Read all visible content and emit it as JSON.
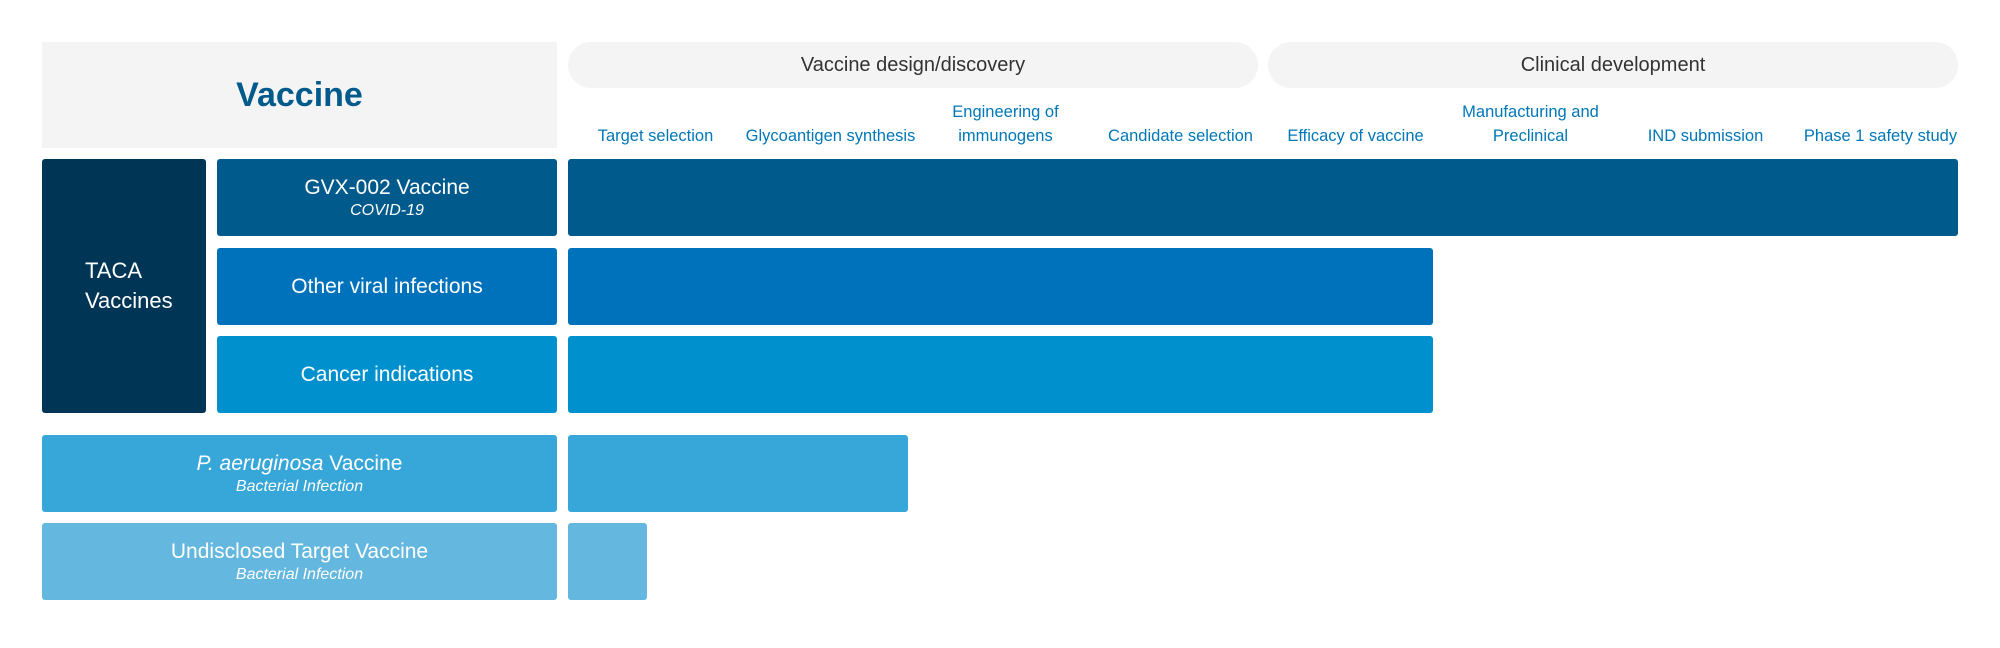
{
  "header": {
    "vaccine_title": "Vaccine",
    "phase_groups": [
      {
        "label": "Vaccine design/discovery"
      },
      {
        "label": "Clinical development"
      }
    ],
    "stages": [
      {
        "line1": "",
        "line2": "Target selection"
      },
      {
        "line1": "",
        "line2": "Glycoantigen synthesis"
      },
      {
        "line1": "Engineering of",
        "line2": "immunogens"
      },
      {
        "line1": "",
        "line2": "Candidate selection"
      },
      {
        "line1": "",
        "line2": "Efficacy of vaccine"
      },
      {
        "line1": "Manufacturing and",
        "line2": "Preclinical"
      },
      {
        "line1": "",
        "line2": "IND submission"
      },
      {
        "line1": "",
        "line2": "Phase 1 safety study"
      }
    ]
  },
  "group": {
    "line1": "TACA",
    "line2": "Vaccines"
  },
  "rows": [
    {
      "name": "GVX-002 Vaccine",
      "subtitle": "COVID-19",
      "progress_stages": 8,
      "color": "#005a8c"
    },
    {
      "name": "Other viral infections",
      "subtitle": "",
      "progress_stages": 5,
      "color": "#0072bc"
    },
    {
      "name": "Cancer indications",
      "subtitle": "",
      "progress_stages": 5,
      "color": "#0090cd"
    },
    {
      "name_italic": "P. aeruginosa",
      "name_rest": " Vaccine",
      "subtitle": "Bacterial Infection",
      "progress_stages": 2,
      "color": "#37a6d8"
    },
    {
      "name": "Undisclosed Target Vaccine",
      "subtitle": "Bacterial Infection",
      "progress_stages": 0.45,
      "color": "#64b8df"
    }
  ]
}
